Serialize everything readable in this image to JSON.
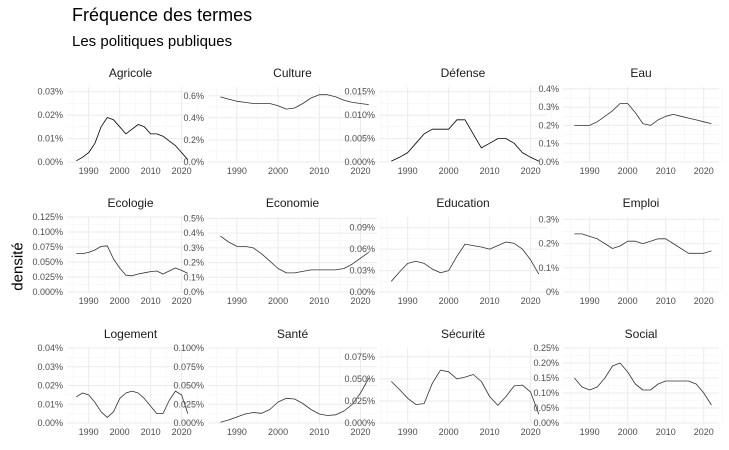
{
  "title": "Fréquence des termes",
  "subtitle": "Les politiques publiques",
  "ylabel": "densité",
  "chart_data": {
    "type": "line",
    "x_ticks": [
      1990,
      2000,
      2010,
      2020
    ],
    "xlim": [
      1983,
      2024
    ],
    "panels": [
      {
        "name": "Agricole",
        "ylim": [
          0,
          0.00032
        ],
        "y_ticks": [
          0,
          0.0001,
          0.0002,
          0.0003
        ],
        "y_tick_labels": [
          "0.00%",
          "0.01%",
          "0.02%",
          "0.03%"
        ],
        "line_color": "#000000",
        "x": [
          1986,
          1988,
          1990,
          1992,
          1994,
          1996,
          1998,
          2000,
          2002,
          2004,
          2006,
          2008,
          2010,
          2012,
          2014,
          2016,
          2018,
          2020,
          2022
        ],
        "y": [
          5e-06,
          2e-05,
          4e-05,
          8e-05,
          0.00015,
          0.00019,
          0.00018,
          0.00015,
          0.00012,
          0.00014,
          0.00016,
          0.00015,
          0.00012,
          0.00012,
          0.00011,
          9e-05,
          7e-05,
          4e-05,
          1e-05
        ]
      },
      {
        "name": "Culture",
        "ylim": [
          0,
          0.0068
        ],
        "y_ticks": [
          0,
          0.002,
          0.004,
          0.006
        ],
        "y_tick_labels": [
          "0.0%",
          "0.2%",
          "0.4%",
          "0.6%"
        ],
        "line_color": "#333333",
        "x": [
          1986,
          1988,
          1990,
          1992,
          1994,
          1996,
          1998,
          2000,
          2002,
          2004,
          2006,
          2008,
          2010,
          2012,
          2014,
          2016,
          2018,
          2020,
          2022
        ],
        "y": [
          0.0059,
          0.0057,
          0.0055,
          0.0054,
          0.0053,
          0.0053,
          0.0053,
          0.0051,
          0.0048,
          0.0049,
          0.0053,
          0.0058,
          0.0061,
          0.0061,
          0.0059,
          0.0056,
          0.0054,
          0.0053,
          0.0052
        ]
      },
      {
        "name": "Défense",
        "ylim": [
          0,
          0.00016
        ],
        "y_ticks": [
          0,
          5e-05,
          0.0001,
          0.00015
        ],
        "y_tick_labels": [
          "0.000%",
          "0.005%",
          "0.010%",
          "0.015%"
        ],
        "line_color": "#000000",
        "x": [
          1986,
          1988,
          1990,
          1992,
          1994,
          1996,
          1998,
          2000,
          2002,
          2004,
          2006,
          2008,
          2010,
          2012,
          2014,
          2016,
          2018,
          2020,
          2022
        ],
        "y": [
          2e-06,
          1e-05,
          2e-05,
          4e-05,
          6e-05,
          7e-05,
          7e-05,
          7e-05,
          9e-05,
          9e-05,
          6e-05,
          3e-05,
          4e-05,
          5e-05,
          5e-05,
          4e-05,
          2e-05,
          1e-05,
          2e-06
        ]
      },
      {
        "name": "Eau",
        "ylim": [
          0,
          0.0041
        ],
        "y_ticks": [
          0,
          0.001,
          0.002,
          0.003,
          0.004
        ],
        "y_tick_labels": [
          "0.0%",
          "0.1%",
          "0.2%",
          "0.3%",
          "0.4%"
        ],
        "line_color": "#333333",
        "x": [
          1986,
          1988,
          1990,
          1992,
          1994,
          1996,
          1998,
          2000,
          2002,
          2004,
          2006,
          2008,
          2010,
          2012,
          2014,
          2016,
          2018,
          2020,
          2022
        ],
        "y": [
          0.002,
          0.002,
          0.002,
          0.0022,
          0.0025,
          0.0028,
          0.0032,
          0.0032,
          0.0027,
          0.0021,
          0.002,
          0.0023,
          0.0025,
          0.0026,
          0.0025,
          0.0024,
          0.0023,
          0.0022,
          0.0021
        ]
      },
      {
        "name": "Ecologie",
        "ylim": [
          0,
          0.00125
        ],
        "y_ticks": [
          0,
          0.00025,
          0.0005,
          0.00075,
          0.001,
          0.00125
        ],
        "y_tick_labels": [
          "0.000%",
          "0.025%",
          "0.050%",
          "0.075%",
          "0.100%",
          "0.125%"
        ],
        "line_color": "#333333",
        "x": [
          1986,
          1988,
          1990,
          1992,
          1994,
          1996,
          1998,
          2000,
          2002,
          2004,
          2006,
          2008,
          2010,
          2012,
          2014,
          2016,
          2018,
          2020,
          2022
        ],
        "y": [
          0.00064,
          0.00064,
          0.00066,
          0.0007,
          0.00076,
          0.00077,
          0.00055,
          0.0004,
          0.00028,
          0.00027,
          0.0003,
          0.00032,
          0.00034,
          0.00035,
          0.0003,
          0.00035,
          0.0004,
          0.00036,
          0.00031
        ]
      },
      {
        "name": "Economie",
        "ylim": [
          0,
          0.0051
        ],
        "y_ticks": [
          0,
          0.001,
          0.002,
          0.003,
          0.004,
          0.005
        ],
        "y_tick_labels": [
          "0.0%",
          "0.1%",
          "0.2%",
          "0.3%",
          "0.4%",
          "0.5%"
        ],
        "line_color": "#333333",
        "x": [
          1986,
          1988,
          1990,
          1992,
          1994,
          1996,
          1998,
          2000,
          2002,
          2004,
          2006,
          2008,
          2010,
          2012,
          2014,
          2016,
          2018,
          2020,
          2022
        ],
        "y": [
          0.0038,
          0.0034,
          0.0031,
          0.0031,
          0.003,
          0.0026,
          0.0021,
          0.0016,
          0.0013,
          0.0013,
          0.0014,
          0.0015,
          0.0015,
          0.0015,
          0.0015,
          0.0016,
          0.0019,
          0.0023,
          0.0027
        ]
      },
      {
        "name": "Education",
        "ylim": [
          0,
          0.00105
        ],
        "y_ticks": [
          0,
          0.0003,
          0.0006,
          0.0009
        ],
        "y_tick_labels": [
          "0.00%",
          "0.03%",
          "0.06%",
          "0.09%"
        ],
        "line_color": "#333333",
        "x": [
          1986,
          1988,
          1990,
          1992,
          1994,
          1996,
          1998,
          2000,
          2002,
          2004,
          2006,
          2008,
          2010,
          2012,
          2014,
          2016,
          2018,
          2020,
          2022
        ],
        "y": [
          0.00015,
          0.00028,
          0.0004,
          0.00043,
          0.0004,
          0.00032,
          0.00027,
          0.0003,
          0.0005,
          0.00067,
          0.00065,
          0.00063,
          0.0006,
          0.00065,
          0.0007,
          0.00068,
          0.0006,
          0.00045,
          0.00025
        ]
      },
      {
        "name": "Emploi",
        "ylim": [
          0,
          0.0031
        ],
        "y_ticks": [
          0,
          0.001,
          0.002,
          0.003
        ],
        "y_tick_labels": [
          "0%",
          "0.1%",
          "0.2%",
          "0.3%"
        ],
        "line_color": "#333333",
        "x": [
          1986,
          1988,
          1990,
          1992,
          1994,
          1996,
          1998,
          2000,
          2002,
          2004,
          2006,
          2008,
          2010,
          2012,
          2014,
          2016,
          2018,
          2020,
          2022
        ],
        "y": [
          0.0024,
          0.0024,
          0.0023,
          0.0022,
          0.002,
          0.0018,
          0.0019,
          0.0021,
          0.0021,
          0.002,
          0.0021,
          0.0022,
          0.0022,
          0.002,
          0.0018,
          0.0016,
          0.0016,
          0.0016,
          0.0017
        ]
      },
      {
        "name": "Logement",
        "ylim": [
          0,
          0.0004
        ],
        "y_ticks": [
          0,
          0.0001,
          0.0002,
          0.0003,
          0.0004
        ],
        "y_tick_labels": [
          "0.00%",
          "0.01%",
          "0.02%",
          "0.03%",
          "0.04%"
        ],
        "line_color": "#333333",
        "x": [
          1986,
          1988,
          1990,
          1992,
          1994,
          1996,
          1998,
          2000,
          2002,
          2004,
          2006,
          2008,
          2010,
          2012,
          2014,
          2016,
          2018,
          2020,
          2022
        ],
        "y": [
          0.00014,
          0.00016,
          0.00015,
          0.00011,
          6e-05,
          3e-05,
          6e-05,
          0.00013,
          0.00016,
          0.00017,
          0.00016,
          0.00013,
          9e-05,
          5e-05,
          5e-05,
          0.00012,
          0.00017,
          0.00015,
          5e-05
        ]
      },
      {
        "name": "Santé",
        "ylim": [
          0,
          0.001
        ],
        "y_ticks": [
          0,
          0.00025,
          0.0005,
          0.00075,
          0.001
        ],
        "y_tick_labels": [
          "0.000%",
          "0.025%",
          "0.050%",
          "0.075%",
          "0.100%"
        ],
        "line_color": "#333333",
        "x": [
          1986,
          1988,
          1990,
          1992,
          1994,
          1996,
          1998,
          2000,
          2002,
          2004,
          2006,
          2008,
          2010,
          2012,
          2014,
          2016,
          2018,
          2020,
          2022
        ],
        "y": [
          1e-05,
          4e-05,
          8e-05,
          0.00012,
          0.00014,
          0.00013,
          0.00018,
          0.00028,
          0.00033,
          0.00032,
          0.00026,
          0.00018,
          0.00012,
          0.0001,
          0.00011,
          0.00016,
          0.00025,
          0.0004,
          0.0006
        ]
      },
      {
        "name": "Sécurité",
        "ylim": [
          0,
          0.00085
        ],
        "y_ticks": [
          0,
          0.00025,
          0.0005,
          0.00075
        ],
        "y_tick_labels": [
          "0.000%",
          "0.025%",
          "0.050%",
          "0.075%"
        ],
        "line_color": "#333333",
        "x": [
          1986,
          1988,
          1990,
          1992,
          1994,
          1996,
          1998,
          2000,
          2002,
          2004,
          2006,
          2008,
          2010,
          2012,
          2014,
          2016,
          2018,
          2020,
          2022
        ],
        "y": [
          0.00047,
          0.00038,
          0.00028,
          0.00021,
          0.00022,
          0.00045,
          0.0006,
          0.00058,
          0.0005,
          0.00052,
          0.00055,
          0.00047,
          0.0003,
          0.0002,
          0.0003,
          0.00042,
          0.00043,
          0.00035,
          0.0001
        ]
      },
      {
        "name": "Social",
        "ylim": [
          0,
          0.0025
        ],
        "y_ticks": [
          0,
          0.0005,
          0.001,
          0.0015,
          0.002,
          0.0025
        ],
        "y_tick_labels": [
          "0.00%",
          "0.05%",
          "0.10%",
          "0.15%",
          "0.20%",
          "0.25%"
        ],
        "line_color": "#333333",
        "x": [
          1986,
          1988,
          1990,
          1992,
          1994,
          1996,
          1998,
          2000,
          2002,
          2004,
          2006,
          2008,
          2010,
          2012,
          2014,
          2016,
          2018,
          2020,
          2022
        ],
        "y": [
          0.0015,
          0.0012,
          0.0011,
          0.0012,
          0.0015,
          0.0019,
          0.002,
          0.0017,
          0.0013,
          0.0011,
          0.0011,
          0.0013,
          0.0014,
          0.0014,
          0.0014,
          0.0014,
          0.0013,
          0.001,
          0.0006
        ]
      }
    ]
  }
}
